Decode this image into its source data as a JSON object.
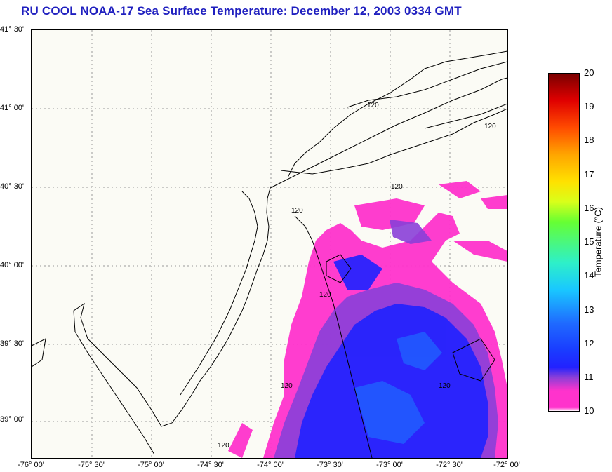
{
  "title": "RU COOL  NOAA-17  Sea Surface Temperature:  December 12, 2003 0334 GMT",
  "lat_labels": [
    "41° 30'",
    "41° 00'",
    "40° 30'",
    "40° 00'",
    "39° 30'",
    "39° 00'"
  ],
  "lon_labels": [
    "-76° 00'",
    "-75° 30'",
    "-75° 00'",
    "-74° 30'",
    "-74° 00'",
    "-73° 30'",
    "-73° 00'",
    "-72° 30'",
    "-72° 00'"
  ],
  "contour_label": "120",
  "colorbar": {
    "title": "Temperature (°C)",
    "ticks": [
      "20",
      "19",
      "18",
      "17",
      "16",
      "15",
      "14",
      "13",
      "12",
      "11",
      "10"
    ],
    "range": [
      10,
      20
    ]
  },
  "colors": {
    "title": "#1f1fbf",
    "cold_pink": "#ff33cc",
    "purple": "#8a3fd8",
    "blue": "#2222ff"
  }
}
